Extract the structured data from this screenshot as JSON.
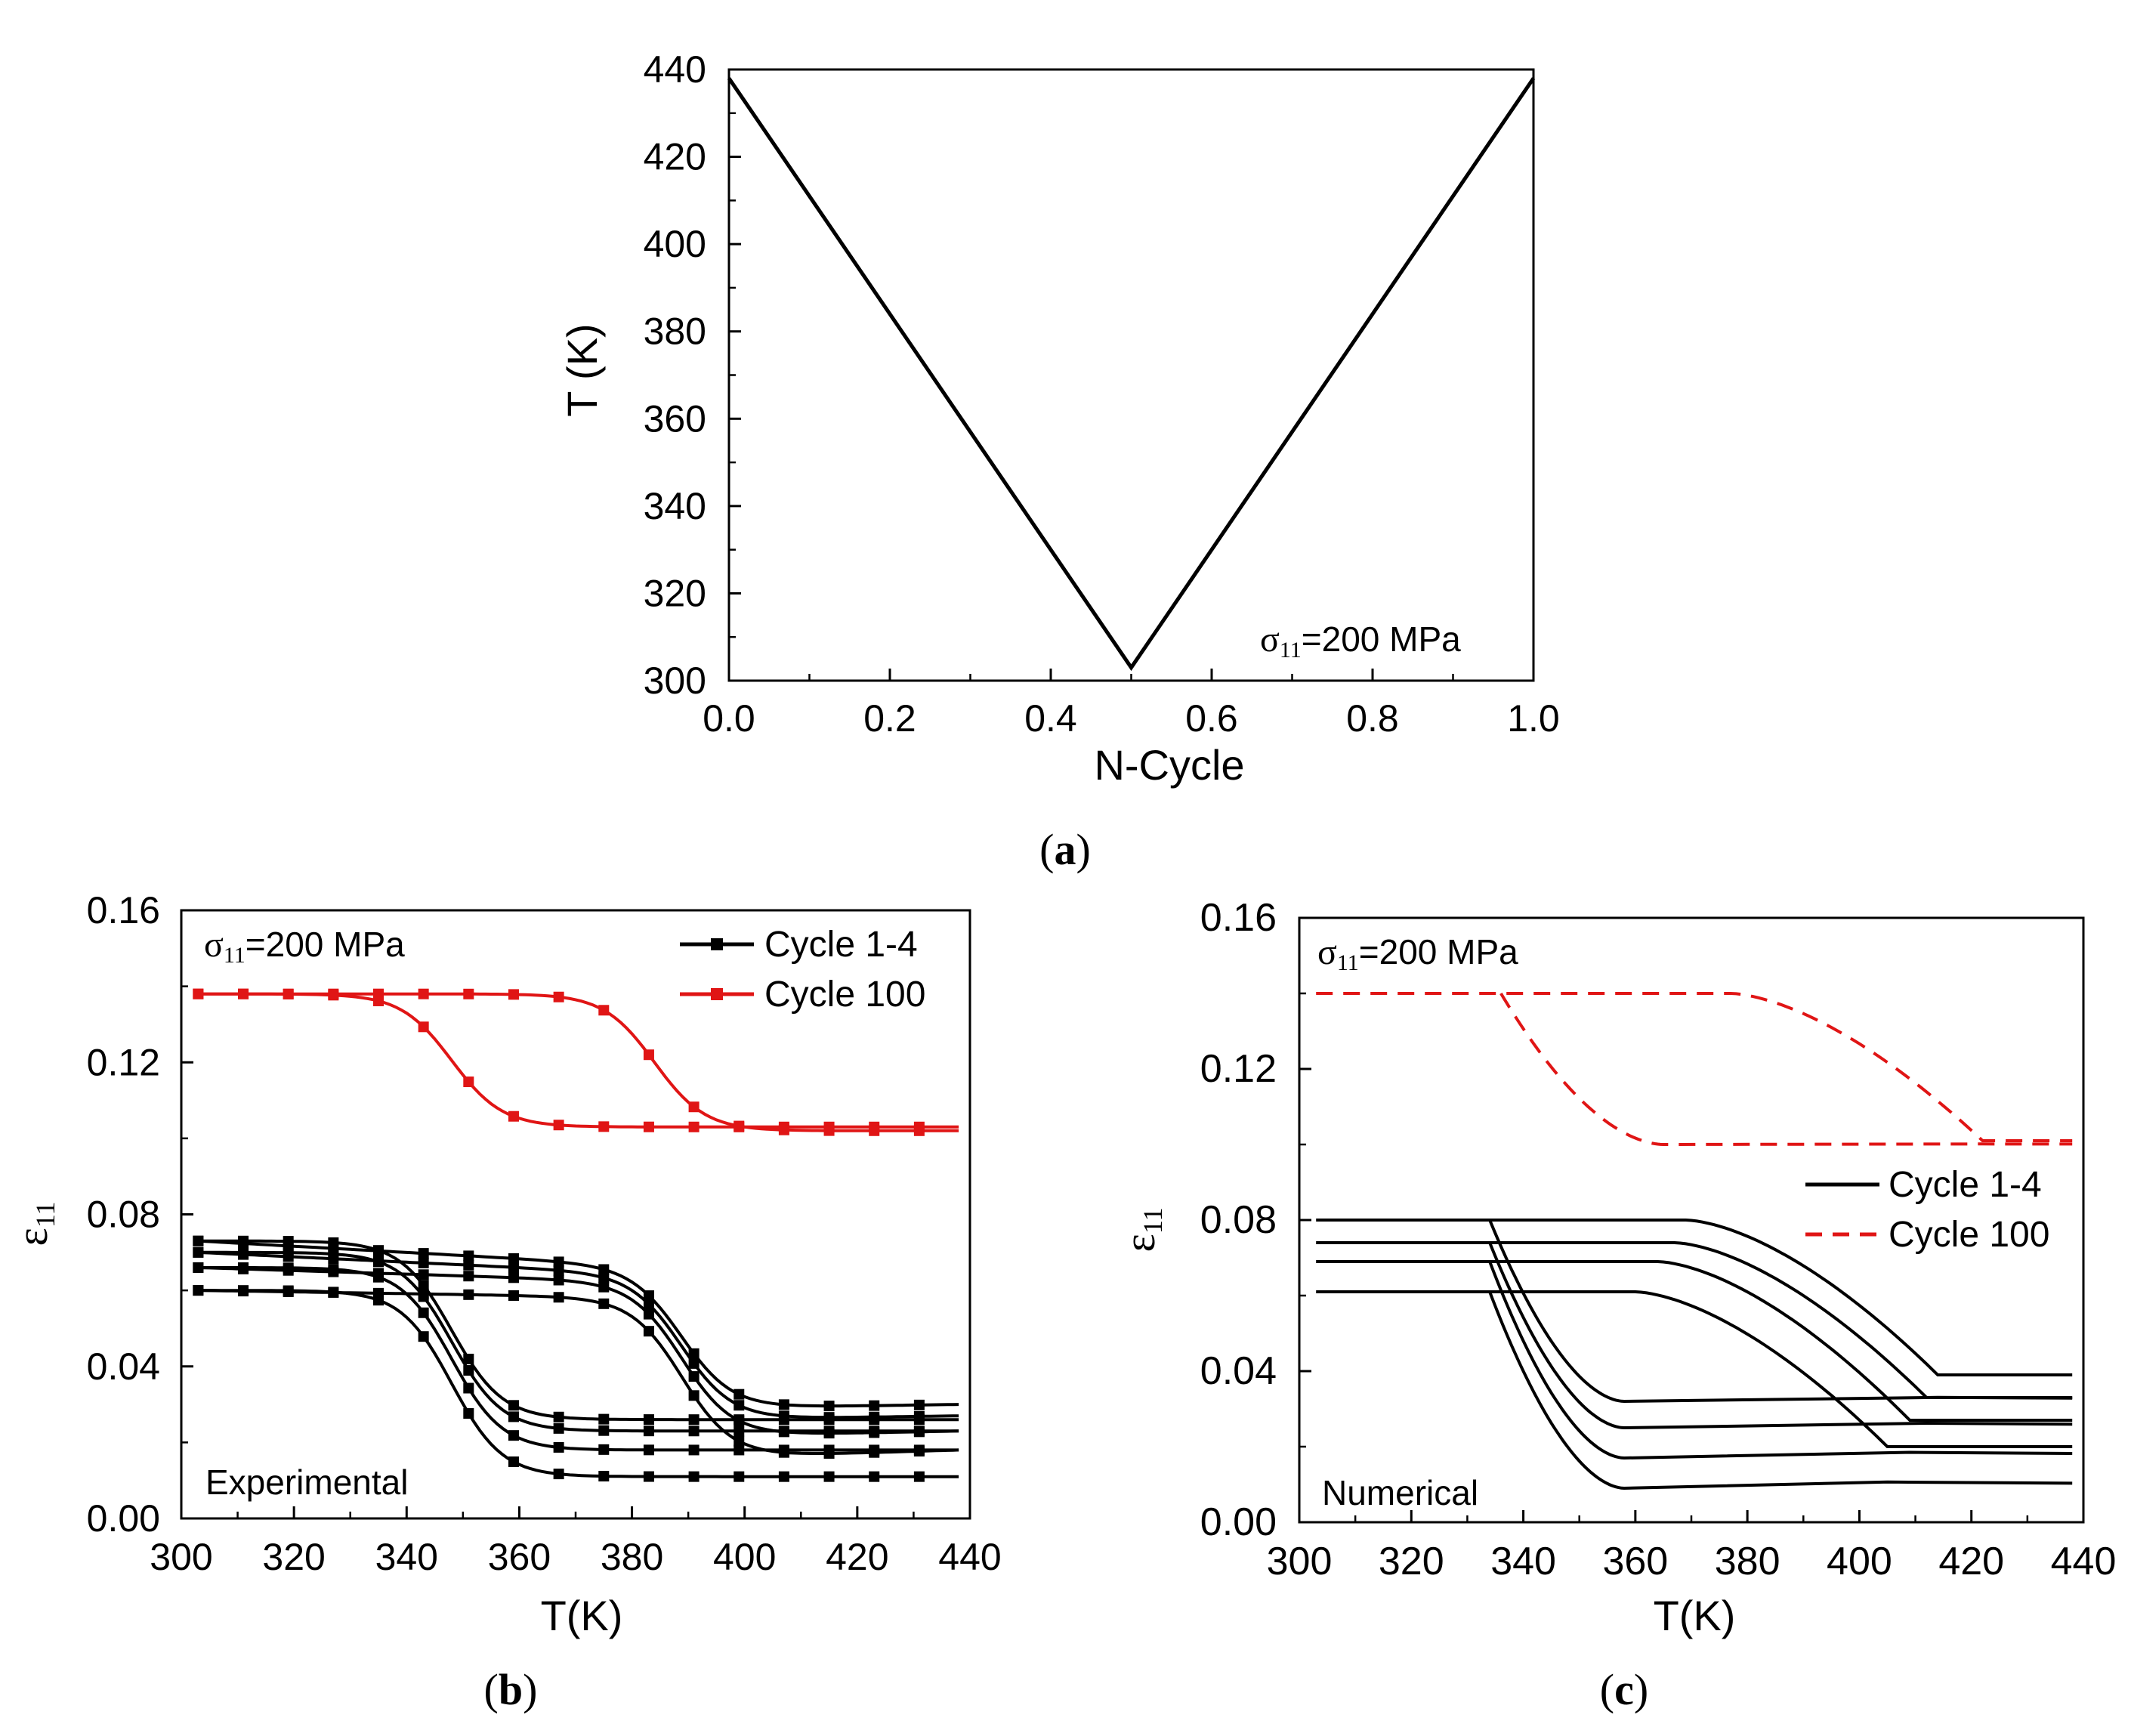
{
  "chart_data": [
    {
      "panel_label": "a",
      "type": "line",
      "xlabel": "N-Cycle",
      "ylabel": "T (K)",
      "xlim": [
        0,
        1
      ],
      "ylim": [
        300,
        440
      ],
      "xticks": [
        "0.0",
        "0.2",
        "0.4",
        "0.6",
        "0.8",
        "1.0"
      ],
      "yticks": [
        "300",
        "320",
        "340",
        "360",
        "380",
        "400",
        "420",
        "440"
      ],
      "annotation": {
        "symbol": "σ",
        "sub": "11",
        "text": "=200 MPa"
      },
      "series": [
        {
          "color": "#000000",
          "x": [
            0.0,
            0.5,
            1.0
          ],
          "y": [
            438,
            303,
            438
          ]
        }
      ]
    },
    {
      "panel_label": "b",
      "type": "line",
      "xlabel": "T(K)",
      "ylabel": {
        "symbol": "ε",
        "sub": "11"
      },
      "xlim": [
        300,
        440
      ],
      "ylim": [
        0.0,
        0.16
      ],
      "xticks": [
        "300",
        "320",
        "340",
        "360",
        "380",
        "400",
        "420",
        "440"
      ],
      "yticks": [
        "0.00",
        "0.04",
        "0.08",
        "0.12",
        "0.16"
      ],
      "annotation": {
        "symbol": "σ",
        "sub": "11",
        "text": "=200 MPa"
      },
      "corner_text": "Experimental",
      "legend": [
        "Cycle 1-4",
        "Cycle 100"
      ],
      "series": [
        {
          "name": "Cycle 1-4",
          "color": "#000000",
          "marker": "square",
          "loops": [
            {
              "upper_left": 0.073,
              "upper_right": 0.066,
              "lower": 0.026,
              "lower_right": 0.027,
              "end": 0.03,
              "drop_center": 348,
              "rise_center": 389
            },
            {
              "upper_left": 0.07,
              "upper_right": 0.064,
              "lower": 0.023,
              "lower_right": 0.024,
              "end": 0.027,
              "drop_center": 348,
              "rise_center": 389
            },
            {
              "upper_left": 0.066,
              "upper_right": 0.062,
              "lower": 0.018,
              "lower_right": 0.019,
              "end": 0.023,
              "drop_center": 348,
              "rise_center": 389
            },
            {
              "upper_left": 0.06,
              "upper_right": 0.058,
              "lower": 0.011,
              "lower_right": 0.012,
              "end": 0.018,
              "drop_center": 348,
              "rise_center": 389
            }
          ]
        },
        {
          "name": "Cycle 100",
          "color": "#e01515",
          "marker": "square",
          "loops": [
            {
              "upper_left": 0.138,
              "upper_right": 0.138,
              "lower": 0.103,
              "lower_right": 0.102,
              "end": 0.102,
              "drop_center": 348,
              "rise_center": 384
            }
          ]
        }
      ]
    },
    {
      "panel_label": "c",
      "type": "line",
      "xlabel": "T(K)",
      "ylabel": {
        "symbol": "ε",
        "sub": "11"
      },
      "xlim": [
        300,
        440
      ],
      "ylim": [
        0.0,
        0.16
      ],
      "xticks": [
        "300",
        "320",
        "340",
        "360",
        "380",
        "400",
        "420",
        "440"
      ],
      "yticks": [
        "0.00",
        "0.04",
        "0.08",
        "0.12",
        "0.16"
      ],
      "annotation": {
        "symbol": "σ",
        "sub": "11",
        "text": "=200 MPa"
      },
      "corner_text": "Numerical",
      "legend": [
        "Cycle 1-4",
        "Cycle 100"
      ],
      "series": [
        {
          "name": "Cycle 1-4",
          "color": "#000000",
          "style": "solid",
          "loops": [
            {
              "upper": 0.08,
              "lower": 0.032,
              "end": 0.039,
              "corner_T": 414,
              "lower_start_T": 358,
              "drop_start_T": 334
            },
            {
              "upper": 0.074,
              "lower": 0.025,
              "end": 0.033,
              "corner_T": 412,
              "lower_start_T": 358,
              "drop_start_T": 334
            },
            {
              "upper": 0.069,
              "lower": 0.017,
              "end": 0.027,
              "corner_T": 409,
              "lower_start_T": 358,
              "drop_start_T": 334
            },
            {
              "upper": 0.061,
              "lower": 0.009,
              "end": 0.02,
              "corner_T": 405,
              "lower_start_T": 358,
              "drop_start_T": 334
            }
          ]
        },
        {
          "name": "Cycle 100",
          "color": "#e01515",
          "style": "dashed",
          "loops": [
            {
              "upper": 0.14,
              "lower": 0.1,
              "end": 0.101,
              "corner_T": 422,
              "lower_start_T": 365,
              "drop_start_T": 336
            }
          ]
        }
      ]
    }
  ],
  "captions": [
    "a",
    "b",
    "c"
  ]
}
